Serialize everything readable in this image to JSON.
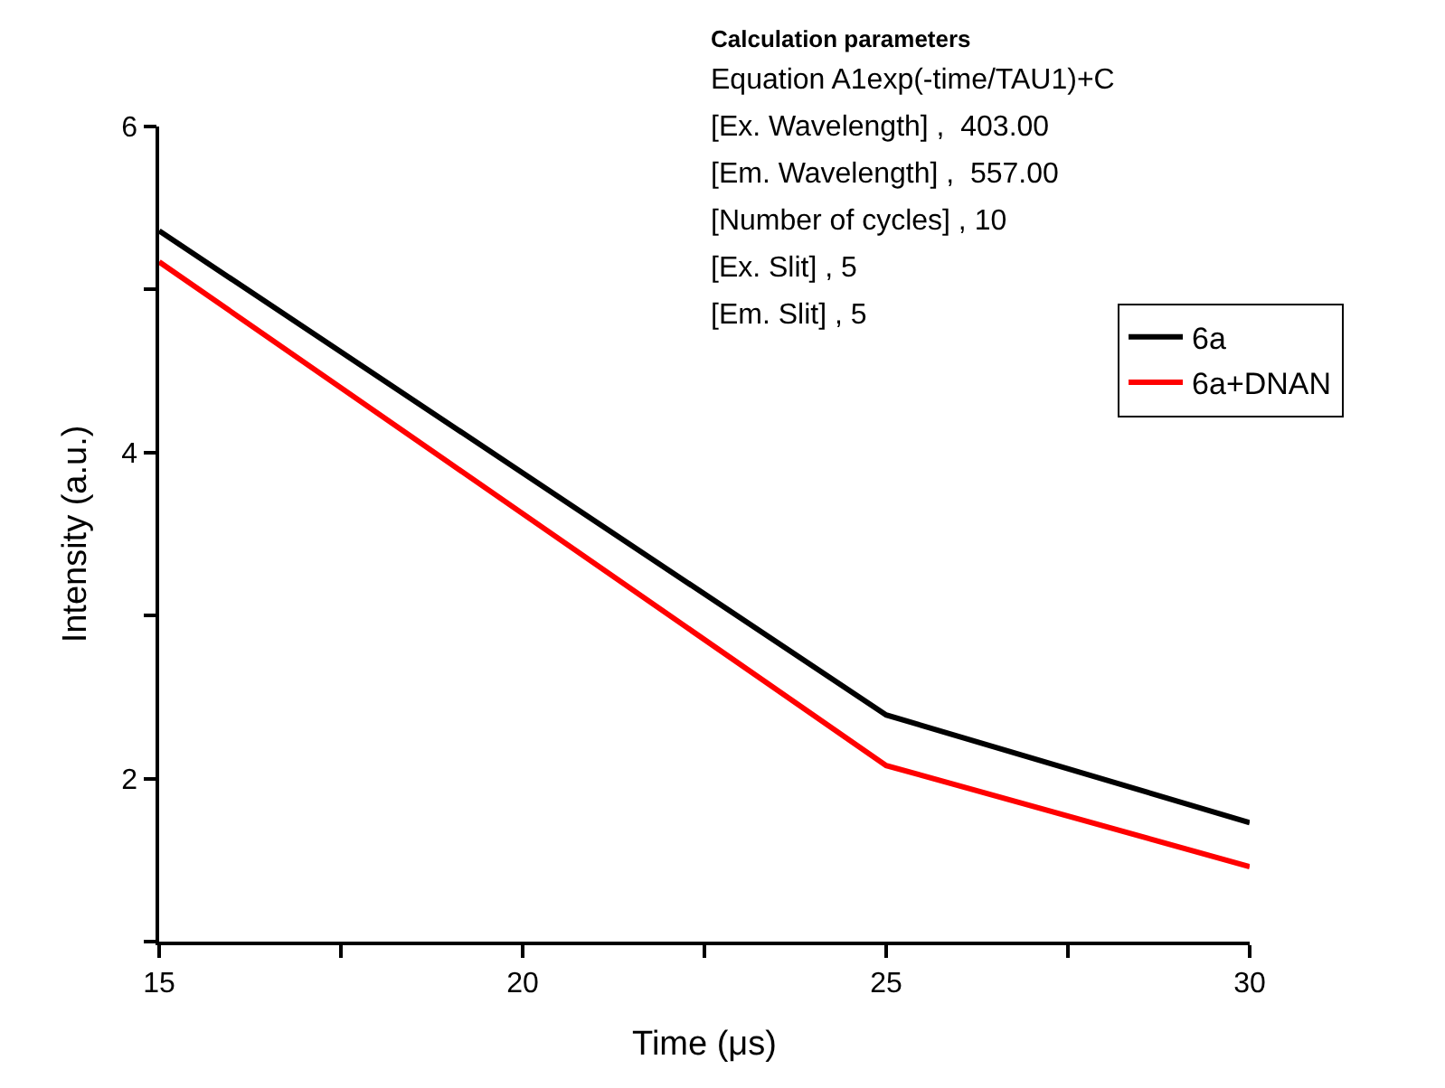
{
  "chart_data": {
    "type": "line",
    "xlabel": "Time (μs)",
    "ylabel": "Intensity (a.u.)",
    "x": [
      15,
      25,
      30
    ],
    "series": [
      {
        "name": "6a",
        "color": "#000000",
        "values": [
          5.36,
          2.39,
          1.73
        ]
      },
      {
        "name": "6a+DNAN",
        "color": "#ff0000",
        "values": [
          5.17,
          2.08,
          1.46
        ]
      }
    ],
    "xlim": [
      15,
      30
    ],
    "xticks": [
      15,
      {
        "value": 17.5,
        "label": null
      },
      20,
      {
        "value": 22.5,
        "label": null
      },
      25,
      {
        "value": 27.5,
        "label": null
      },
      30
    ],
    "ylim": [
      1,
      6
    ],
    "yticks": [
      {
        "value": 1,
        "label": null
      },
      2,
      {
        "value": 3,
        "label": null
      },
      4,
      {
        "value": 5,
        "label": null
      },
      6
    ],
    "grid": false,
    "legend": "top right",
    "marker": "none",
    "line_style": "solid",
    "annotations": [
      "Calculation parameters",
      "Equation A1exp(-time/TAU1)+C",
      "[Ex. Wavelength] ,  403.00",
      "[Em. Wavelength] ,  557.00",
      "[Number of cycles] , 10",
      "[Ex. Slit] , 5",
      "[Em. Slit] , 5"
    ]
  }
}
